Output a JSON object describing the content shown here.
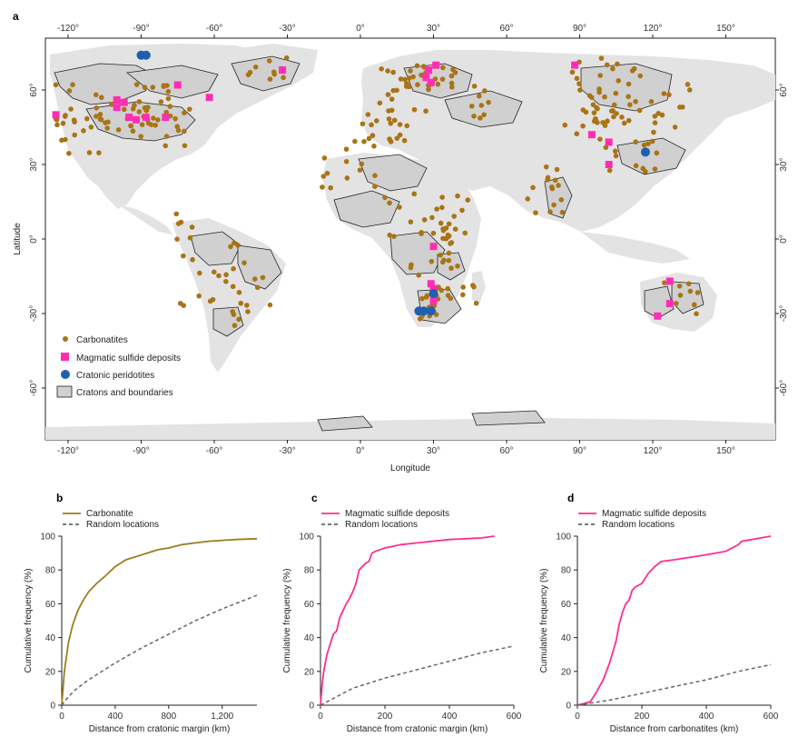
{
  "panels": {
    "a": "a",
    "b": "b",
    "c": "c",
    "d": "d"
  },
  "map": {
    "xlabel": "Longitude",
    "ylabel": "Latitude",
    "lon_ticks": [
      "-120°",
      "-90°",
      "-60°",
      "-30°",
      "0°",
      "30°",
      "60°",
      "90°",
      "120°",
      "150°"
    ],
    "lat_ticks": [
      "60°",
      "30°",
      "0°",
      "-30°",
      "-60°"
    ],
    "legend": [
      {
        "label": "Carbonatites",
        "color": "#a97415",
        "shape": "circle"
      },
      {
        "label": "Magmatic sulfide deposits",
        "color": "#ff2db4",
        "shape": "square"
      },
      {
        "label": "Cratonic peridotites",
        "color": "#1f5fb0",
        "shape": "circle"
      },
      {
        "label": "Cratons and boundaries",
        "color": "#d4d4d4",
        "shape": "rect"
      }
    ],
    "colors": {
      "land": "#e3e3e3",
      "craton": "#d4d4d4",
      "carbonatite": "#a97415",
      "sulfide": "#ff2db4",
      "peridotite": "#1f5fb0"
    }
  },
  "chart_data": [
    {
      "type": "line",
      "panel": "b",
      "xlabel": "Distance from cratonic margin (km)",
      "ylabel": "Cumulative frequency (%)",
      "xlim": [
        0,
        1460
      ],
      "ylim": [
        0,
        100
      ],
      "x_ticks": [
        "0",
        "400",
        "800",
        "1,200"
      ],
      "x_tick_values": [
        0,
        400,
        800,
        1200
      ],
      "y_ticks": [
        "0",
        "20",
        "40",
        "60",
        "80",
        "100"
      ],
      "series": [
        {
          "name": "Carbonatite",
          "color": "#9b7d1e",
          "style": "solid",
          "x": [
            0,
            20,
            50,
            80,
            120,
            160,
            200,
            260,
            320,
            400,
            480,
            560,
            640,
            720,
            800,
            900,
            1000,
            1100,
            1200,
            1300,
            1460
          ],
          "y": [
            0,
            20,
            37,
            47,
            56,
            62,
            67,
            72,
            76,
            82,
            86,
            88,
            90,
            92,
            93,
            95,
            96,
            97,
            97.5,
            98,
            98.5
          ]
        },
        {
          "name": "Random locations",
          "color": "#666666",
          "style": "dashed",
          "x": [
            0,
            50,
            100,
            200,
            300,
            400,
            600,
            800,
            1000,
            1200,
            1460
          ],
          "y": [
            0,
            5,
            9,
            15,
            20,
            25,
            34,
            42,
            50,
            57,
            65
          ]
        }
      ]
    },
    {
      "type": "line",
      "panel": "c",
      "xlabel": "Distance from cratonic margin (km)",
      "ylabel": "Cumulative frequency (%)",
      "xlim": [
        0,
        600
      ],
      "ylim": [
        0,
        100
      ],
      "x_ticks": [
        "0",
        "200",
        "400",
        "600"
      ],
      "x_tick_values": [
        0,
        200,
        400,
        600
      ],
      "y_ticks": [
        "0",
        "20",
        "40",
        "60",
        "80",
        "100"
      ],
      "series": [
        {
          "name": "Magmatic sulfide deposits",
          "color": "#ff2d8e",
          "style": "solid",
          "x": [
            0,
            5,
            10,
            20,
            30,
            40,
            50,
            60,
            70,
            80,
            90,
            100,
            110,
            120,
            130,
            140,
            150,
            160,
            170,
            200,
            250,
            300,
            400,
            500,
            540
          ],
          "y": [
            0,
            12,
            20,
            30,
            36,
            42,
            44,
            52,
            56,
            60,
            63,
            67,
            72,
            80,
            82,
            84,
            85,
            90,
            91,
            93,
            95,
            96,
            98,
            99,
            100
          ]
        },
        {
          "name": "Random locations",
          "color": "#666666",
          "style": "dashed",
          "x": [
            0,
            50,
            100,
            200,
            300,
            400,
            500,
            600
          ],
          "y": [
            0,
            5,
            10,
            16,
            21,
            26,
            31,
            35
          ]
        }
      ]
    },
    {
      "type": "line",
      "panel": "d",
      "xlabel": "Distance from carbonatites (km)",
      "ylabel": "Cumulative frequency (%)",
      "xlim": [
        0,
        600
      ],
      "ylim": [
        0,
        100
      ],
      "x_ticks": [
        "0",
        "200",
        "400",
        "600"
      ],
      "x_tick_values": [
        0,
        200,
        400,
        600
      ],
      "y_ticks": [
        "0",
        "20",
        "40",
        "60",
        "80",
        "100"
      ],
      "series": [
        {
          "name": "Magmatic sulfide deposits",
          "color": "#ff2d8e",
          "style": "solid",
          "x": [
            0,
            40,
            60,
            80,
            100,
            120,
            130,
            140,
            150,
            160,
            170,
            180,
            200,
            220,
            240,
            260,
            300,
            400,
            460,
            500,
            510,
            600
          ],
          "y": [
            0,
            2,
            8,
            15,
            25,
            38,
            48,
            55,
            60,
            62,
            68,
            70,
            72,
            78,
            82,
            85,
            86,
            89,
            91,
            95,
            97,
            100
          ]
        },
        {
          "name": "Random locations",
          "color": "#666666",
          "style": "dashed",
          "x": [
            0,
            100,
            200,
            300,
            400,
            500,
            600
          ],
          "y": [
            0,
            3,
            7,
            11,
            15,
            20,
            24
          ]
        }
      ]
    }
  ]
}
